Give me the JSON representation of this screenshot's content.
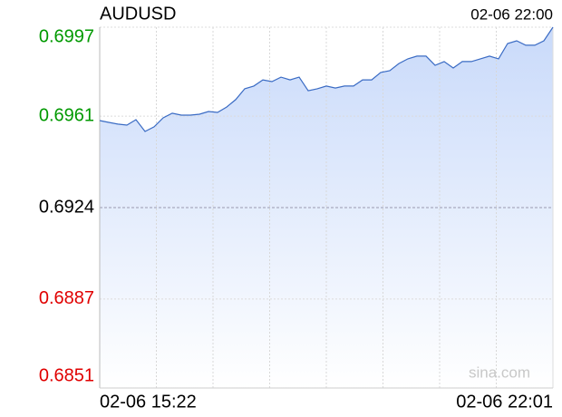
{
  "chart_data": {
    "type": "area",
    "title": "AUDUSD",
    "time": "02-06 22:00",
    "watermark": "sina.com",
    "categories": [
      "02-06 15:22",
      null,
      null,
      null,
      null,
      null,
      null,
      null,
      null,
      null,
      null,
      null,
      null,
      null,
      null,
      null,
      null,
      null,
      null,
      null,
      null,
      null,
      null,
      null,
      null,
      null,
      null,
      null,
      null,
      null,
      null,
      null,
      null,
      null,
      null,
      null,
      null,
      null,
      null,
      null,
      null,
      null,
      null,
      null,
      null,
      null,
      null,
      null,
      null,
      null,
      "02-06 22:01"
    ],
    "series": [
      {
        "name": "AUDUSD",
        "color": "#3a6bc4",
        "values": [
          0.69592,
          0.69585,
          0.69578,
          0.69574,
          0.69596,
          0.69548,
          0.69567,
          0.69603,
          0.69622,
          0.69614,
          0.69614,
          0.69618,
          0.69629,
          0.69625,
          0.69647,
          0.69677,
          0.69721,
          0.69732,
          0.69757,
          0.6975,
          0.69768,
          0.69757,
          0.69768,
          0.69713,
          0.69721,
          0.69732,
          0.69724,
          0.69732,
          0.69732,
          0.69757,
          0.69757,
          0.69787,
          0.69794,
          0.69823,
          0.69842,
          0.69853,
          0.69853,
          0.69816,
          0.69831,
          0.69805,
          0.69831,
          0.69831,
          0.69842,
          0.69853,
          0.69842,
          0.69904,
          0.69915,
          0.69897,
          0.69897,
          0.69915,
          0.6997
        ]
      }
    ],
    "ylim": [
      0.6851,
      0.6997
    ],
    "yticks": [
      0.6851,
      0.6887,
      0.6924,
      0.6961,
      0.6997
    ],
    "ytick_colors": [
      "#e00000",
      "#e00000",
      "#000000",
      "#009900",
      "#009900"
    ],
    "grid": true
  }
}
